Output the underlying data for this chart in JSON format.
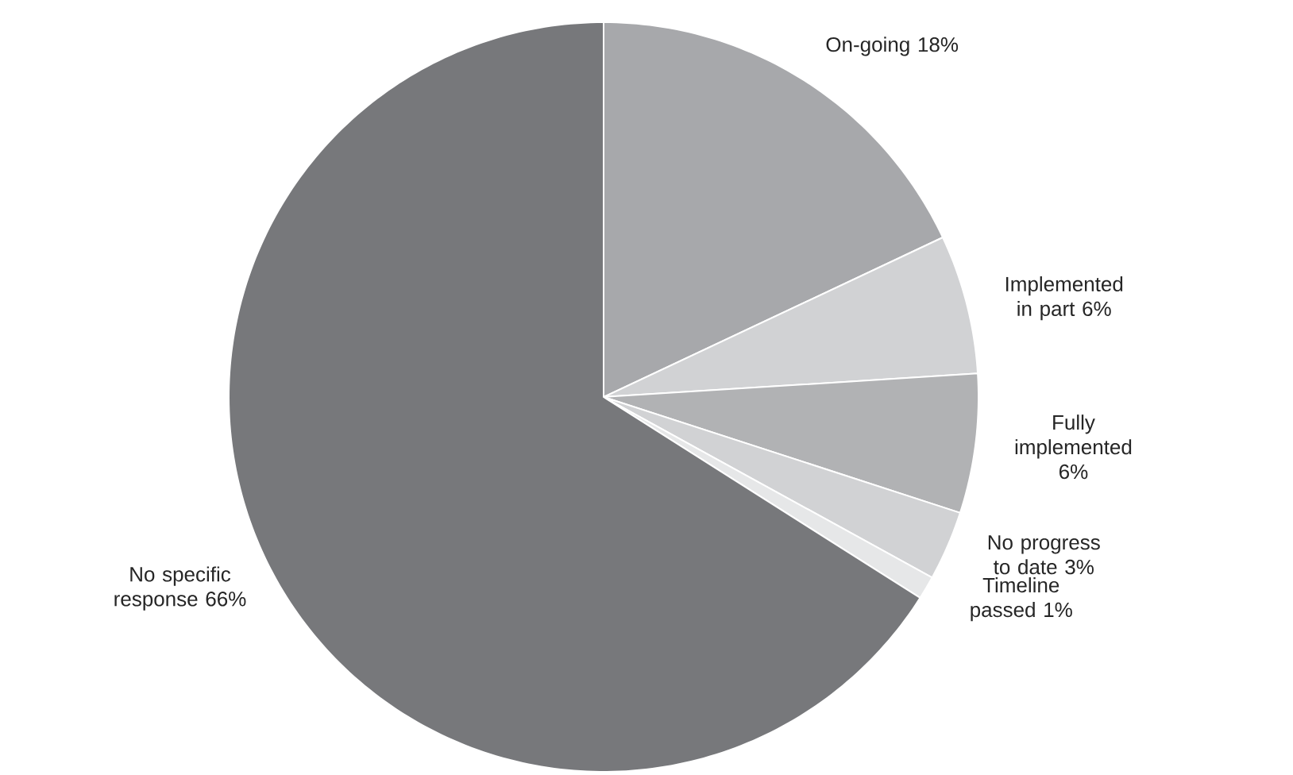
{
  "chart_data": {
    "type": "pie",
    "categories": [
      "On-going",
      "Implemented in part",
      "Fully implemented",
      "No progress to date",
      "Timeline passed",
      "No specific response"
    ],
    "values": [
      18,
      6,
      6,
      3,
      1,
      66
    ],
    "value_labels": [
      "18%",
      "6%",
      "6%",
      "3%",
      "1%",
      "66%"
    ],
    "colors": [
      "#a7a8ab",
      "#d1d2d4",
      "#b1b2b4",
      "#d1d2d4",
      "#e6e7e8",
      "#77787b"
    ]
  }
}
